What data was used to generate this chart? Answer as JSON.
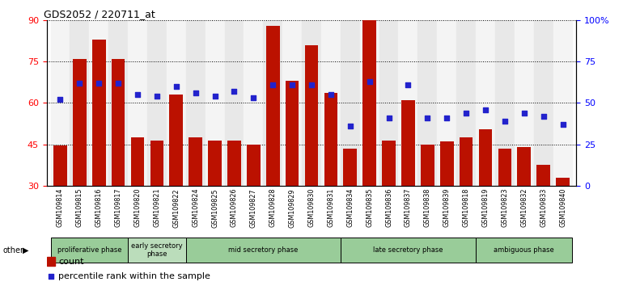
{
  "title": "GDS2052 / 220711_at",
  "samples": [
    "GSM109814",
    "GSM109815",
    "GSM109816",
    "GSM109817",
    "GSM109820",
    "GSM109821",
    "GSM109822",
    "GSM109824",
    "GSM109825",
    "GSM109826",
    "GSM109827",
    "GSM109828",
    "GSM109829",
    "GSM109830",
    "GSM109831",
    "GSM109834",
    "GSM109835",
    "GSM109836",
    "GSM109837",
    "GSM109838",
    "GSM109839",
    "GSM109818",
    "GSM109819",
    "GSM109823",
    "GSM109832",
    "GSM109833",
    "GSM109840"
  ],
  "counts": [
    44.5,
    76.0,
    83.0,
    76.0,
    47.5,
    46.5,
    63.0,
    47.5,
    46.5,
    46.5,
    45.0,
    88.0,
    68.0,
    81.0,
    63.5,
    43.5,
    90.0,
    46.5,
    61.0,
    45.0,
    46.0,
    47.5,
    50.5,
    43.5,
    44.0,
    37.5,
    33.0
  ],
  "percentiles": [
    52,
    62,
    62,
    62,
    55,
    54,
    60,
    56,
    54,
    57,
    53,
    61,
    61,
    61,
    55,
    36,
    63,
    41,
    61,
    41,
    41,
    44,
    46,
    39,
    44,
    42,
    37
  ],
  "ylim_left": [
    30,
    90
  ],
  "ylim_right": [
    0,
    100
  ],
  "yticks_left": [
    30,
    45,
    60,
    75,
    90
  ],
  "yticks_right": [
    0,
    25,
    50,
    75,
    100
  ],
  "bar_color": "#bb1100",
  "dot_color": "#2222cc",
  "phase_groups": [
    {
      "label": "proliferative phase",
      "start": 0,
      "end": 4,
      "color": "#99cc99"
    },
    {
      "label": "early secretory\nphase",
      "start": 4,
      "end": 7,
      "color": "#bbddbb"
    },
    {
      "label": "mid secretory phase",
      "start": 7,
      "end": 15,
      "color": "#99cc99"
    },
    {
      "label": "late secretory phase",
      "start": 15,
      "end": 22,
      "color": "#99cc99"
    },
    {
      "label": "ambiguous phase",
      "start": 22,
      "end": 27,
      "color": "#99cc99"
    }
  ],
  "col_bg_odd": "#e8e8e8",
  "col_bg_even": "#f4f4f4",
  "legend_count_label": "count",
  "legend_pct_label": "percentile rank within the sample"
}
